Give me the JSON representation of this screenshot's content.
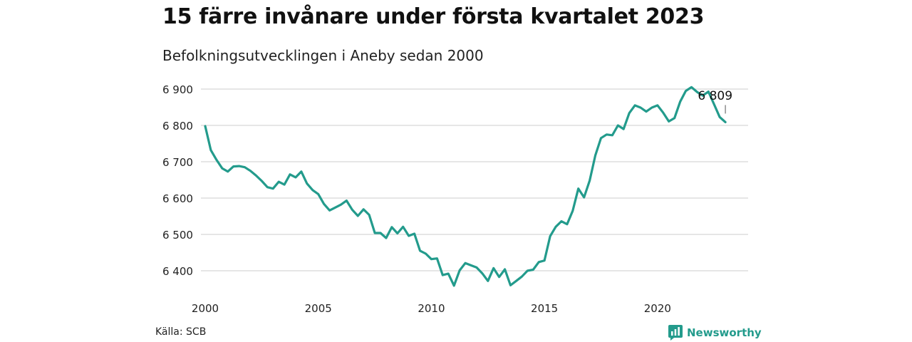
{
  "header": {
    "title": "15 färre invånare under första kvartalet 2023",
    "subtitle": "Befolkningsutvecklingen i Aneby sedan 2000"
  },
  "footer": {
    "source": "Källa: SCB",
    "brand": "Newsworthy",
    "brand_icon": "newsworthy-logo-icon"
  },
  "colors": {
    "line": "#239b8c",
    "grid": "#dddddd",
    "brand": "#239b8c"
  },
  "chart_data": {
    "type": "line",
    "title": "15 färre invånare under första kvartalet 2023",
    "subtitle": "Befolkningsutvecklingen i Aneby sedan 2000",
    "xlabel": "",
    "ylabel": "",
    "xlim": [
      2000,
      2023.25
    ],
    "ylim": [
      6350,
      6920
    ],
    "grid": true,
    "y_ticks": [
      6400,
      6500,
      6600,
      6700,
      6800,
      6900
    ],
    "y_tick_labels": [
      "6 400",
      "6 500",
      "6 600",
      "6 700",
      "6 800",
      "6 900"
    ],
    "x_ticks": [
      2000,
      2005,
      2010,
      2015,
      2020
    ],
    "x_tick_labels": [
      "2000",
      "2005",
      "2010",
      "2015",
      "2020"
    ],
    "annotation": {
      "label": "6 809",
      "x": 2023.0,
      "y": 6809
    },
    "series": [
      {
        "x": [
          2000.0,
          2000.25,
          2000.5,
          2000.75,
          2001.0,
          2001.25,
          2001.5,
          2001.75,
          2002.0,
          2002.25,
          2002.5,
          2002.75,
          2003.0,
          2003.25,
          2003.5,
          2003.75,
          2004.0,
          2004.25,
          2004.5,
          2004.75,
          2005.0,
          2005.25,
          2005.5,
          2005.75,
          2006.0,
          2006.25,
          2006.5,
          2006.75,
          2007.0,
          2007.25,
          2007.5,
          2007.75,
          2008.0,
          2008.25,
          2008.5,
          2008.75,
          2009.0,
          2009.25,
          2009.5,
          2009.75,
          2010.0,
          2010.25,
          2010.5,
          2010.75,
          2011.0,
          2011.25,
          2011.5,
          2011.75,
          2012.0,
          2012.25,
          2012.5,
          2012.75,
          2013.0,
          2013.25,
          2013.5,
          2013.75,
          2014.0,
          2014.25,
          2014.5,
          2014.75,
          2015.0,
          2015.25,
          2015.5,
          2015.75,
          2016.0,
          2016.25,
          2016.5,
          2016.75,
          2017.0,
          2017.25,
          2017.5,
          2017.75,
          2018.0,
          2018.25,
          2018.5,
          2018.75,
          2019.0,
          2019.25,
          2019.5,
          2019.75,
          2020.0,
          2020.25,
          2020.5,
          2020.75,
          2021.0,
          2021.25,
          2021.5,
          2021.75,
          2022.0,
          2022.25,
          2022.5,
          2022.75,
          2023.0
        ],
        "values": [
          6798,
          6732,
          6705,
          6682,
          6673,
          6687,
          6688,
          6685,
          6675,
          6662,
          6647,
          6630,
          6626,
          6645,
          6637,
          6665,
          6657,
          6673,
          6640,
          6622,
          6611,
          6584,
          6566,
          6574,
          6582,
          6593,
          6568,
          6551,
          6569,
          6554,
          6504,
          6504,
          6490,
          6520,
          6503,
          6521,
          6496,
          6502,
          6455,
          6447,
          6432,
          6434,
          6388,
          6392,
          6359,
          6401,
          6421,
          6415,
          6409,
          6393,
          6372,
          6407,
          6383,
          6404,
          6360,
          6372,
          6384,
          6400,
          6403,
          6424,
          6428,
          6495,
          6521,
          6536,
          6528,
          6565,
          6626,
          6602,
          6648,
          6717,
          6765,
          6775,
          6773,
          6800,
          6790,
          6834,
          6855,
          6849,
          6838,
          6849,
          6855,
          6835,
          6811,
          6820,
          6865,
          6895,
          6905,
          6892,
          6882,
          6893,
          6858,
          6823,
          6809
        ]
      }
    ]
  }
}
